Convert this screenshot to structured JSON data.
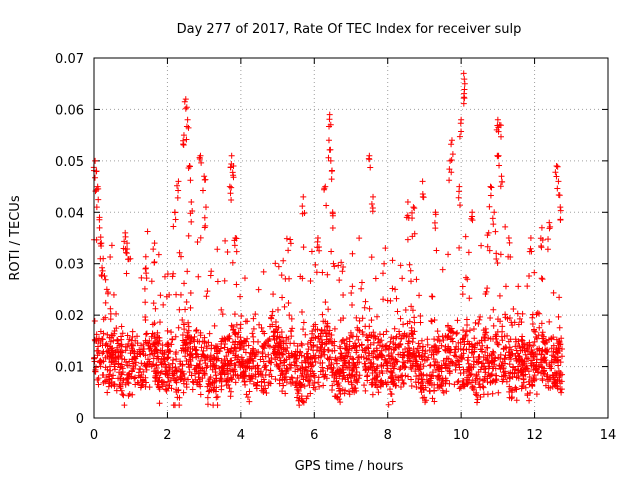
{
  "chart_data": {
    "type": "scatter",
    "title": "Day 277 of 2017, Rate Of TEC Index for receiver sulp",
    "xlabel": "GPS time / hours",
    "ylabel": "ROTI / TECUs",
    "xlim": [
      0,
      14
    ],
    "ylim": [
      0,
      0.07
    ],
    "xticks": [
      0,
      2,
      4,
      6,
      8,
      10,
      12,
      14
    ],
    "xtick_labels": [
      "0",
      "2",
      "4",
      "6",
      "8",
      "10",
      "12",
      "14"
    ],
    "yticks": [
      0,
      0.01,
      0.02,
      0.03,
      0.04,
      0.05,
      0.06,
      0.07
    ],
    "ytick_labels": [
      "0",
      "0.01",
      "0.02",
      "0.03",
      "0.04",
      "0.05",
      "0.06",
      "0.07"
    ],
    "grid": true,
    "marker": "+",
    "color": "#ff0000",
    "series": [
      {
        "name": "ROTI",
        "x_range": [
          0,
          12.75
        ],
        "typical_range": [
          0.004,
          0.02
        ],
        "notable_points": [
          [
            0.03,
            0.05
          ],
          [
            0.07,
            0.048
          ],
          [
            0.1,
            0.045
          ],
          [
            0.15,
            0.039
          ],
          [
            0.2,
            0.034
          ],
          [
            0.25,
            0.031
          ],
          [
            0.35,
            0.025
          ],
          [
            0.85,
            0.036
          ],
          [
            0.9,
            0.034
          ],
          [
            1.4,
            0.029
          ],
          [
            1.65,
            0.034
          ],
          [
            2.2,
            0.04
          ],
          [
            2.3,
            0.046
          ],
          [
            2.45,
            0.055
          ],
          [
            2.5,
            0.062
          ],
          [
            2.55,
            0.058
          ],
          [
            2.6,
            0.049
          ],
          [
            2.65,
            0.042
          ],
          [
            2.9,
            0.051
          ],
          [
            3.0,
            0.047
          ],
          [
            3.05,
            0.041
          ],
          [
            3.75,
            0.051
          ],
          [
            3.8,
            0.049
          ],
          [
            3.7,
            0.045
          ],
          [
            3.85,
            0.035
          ],
          [
            5.7,
            0.043
          ],
          [
            6.1,
            0.035
          ],
          [
            6.3,
            0.045
          ],
          [
            6.4,
            0.054
          ],
          [
            6.42,
            0.059
          ],
          [
            6.45,
            0.05
          ],
          [
            6.5,
            0.04
          ],
          [
            7.5,
            0.051
          ],
          [
            7.6,
            0.043
          ],
          [
            8.55,
            0.042
          ],
          [
            8.7,
            0.041
          ],
          [
            8.95,
            0.046
          ],
          [
            9.3,
            0.04
          ],
          [
            9.7,
            0.05
          ],
          [
            9.75,
            0.054
          ],
          [
            9.95,
            0.045
          ],
          [
            10.0,
            0.058
          ],
          [
            10.07,
            0.067
          ],
          [
            10.1,
            0.065
          ],
          [
            10.3,
            0.04
          ],
          [
            10.75,
            0.036
          ],
          [
            10.8,
            0.045
          ],
          [
            10.9,
            0.04
          ],
          [
            11.0,
            0.058
          ],
          [
            11.05,
            0.057
          ],
          [
            11.02,
            0.051
          ],
          [
            11.1,
            0.047
          ],
          [
            11.3,
            0.035
          ],
          [
            11.9,
            0.035
          ],
          [
            12.2,
            0.037
          ],
          [
            12.4,
            0.038
          ],
          [
            12.6,
            0.049
          ],
          [
            12.65,
            0.046
          ],
          [
            12.7,
            0.041
          ]
        ]
      }
    ]
  }
}
